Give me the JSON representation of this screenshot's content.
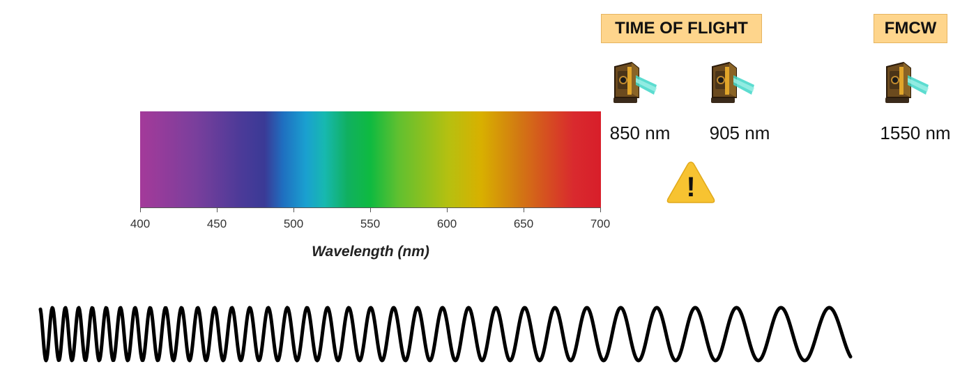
{
  "spectrum": {
    "ticks": [
      "400",
      "450",
      "500",
      "550",
      "600",
      "650",
      "700"
    ],
    "axis_title": "Wavelength (nm)"
  },
  "tof": {
    "label": "TIME OF FLIGHT",
    "sensors": [
      {
        "wavelength": "850 nm"
      },
      {
        "wavelength": "905 nm"
      }
    ]
  },
  "fmcw": {
    "label": "FMCW",
    "sensors": [
      {
        "wavelength": "1550 nm"
      }
    ]
  },
  "warning": {
    "icon": "warning-icon",
    "glyph": "!"
  },
  "colors": {
    "header_bg": "#fed58c",
    "warning": "#f7c331",
    "beam": "#3fd6c8"
  }
}
